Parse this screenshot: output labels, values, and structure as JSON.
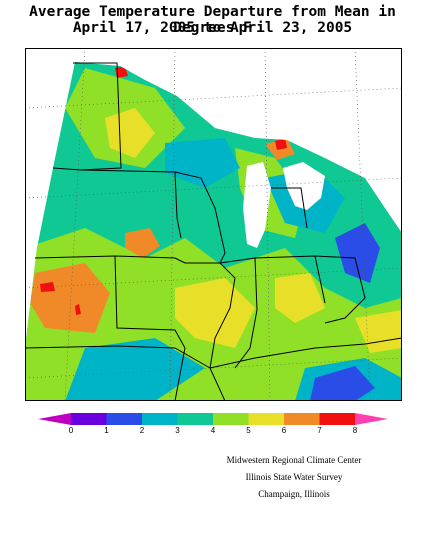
{
  "title": {
    "line1": "Average Temperature Departure from Mean in Degrees F",
    "line2": "April 17, 2005 to April 23, 2005"
  },
  "legend": {
    "colors": [
      "#c000c0",
      "#6a00e0",
      "#2a4de8",
      "#00b4c8",
      "#10c894",
      "#90e028",
      "#e8e028",
      "#f08a28",
      "#f01010",
      "#ff40b0"
    ],
    "ticks": [
      "0",
      "1",
      "2",
      "3",
      "4",
      "5",
      "6",
      "7",
      "8"
    ]
  },
  "colors": {
    "t2": "#2a4de8",
    "t3": "#00b4c8",
    "t4": "#10c894",
    "t5": "#90e028",
    "t6": "#e8e028",
    "t7": "#f08a28",
    "t8": "#f01010",
    "lake": "#ffffff",
    "border": "#000000"
  },
  "credits": {
    "line1": "Midwestern Regional Climate Center",
    "line2": "Illinois State Water Survey",
    "line3": "Champaign, Illinois"
  }
}
